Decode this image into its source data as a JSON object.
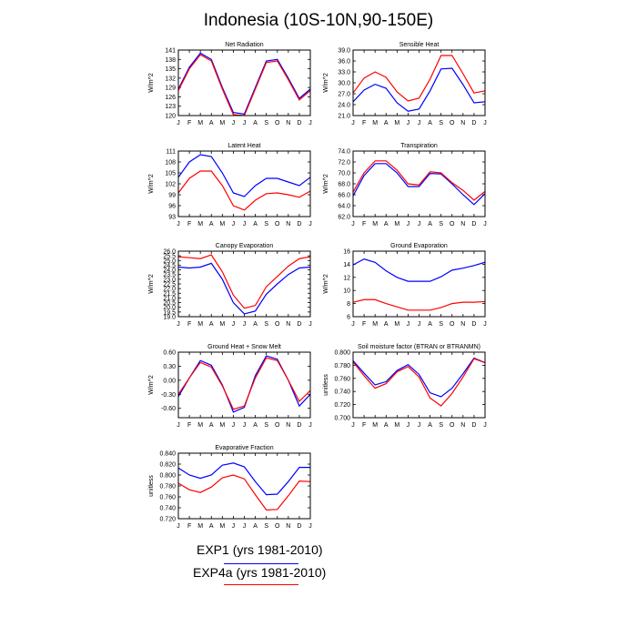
{
  "figure": {
    "title": "Indonesia (10S-10N,90-150E)",
    "months": [
      "J",
      "F",
      "M",
      "A",
      "M",
      "J",
      "J",
      "A",
      "S",
      "O",
      "N",
      "D",
      "J"
    ]
  },
  "legend": [
    {
      "label": "EXP1 (yrs 1981-2010)",
      "color": "#0000ff"
    },
    {
      "label": "EXP4a (yrs 1981-2010)",
      "color": "#ff0000"
    }
  ],
  "chart_data": [
    {
      "type": "line",
      "title": "Net Radiation",
      "ylabel": "W/m^2",
      "ylim": [
        120,
        141
      ],
      "yticks": [
        120,
        123,
        126,
        129,
        132,
        135,
        138,
        141
      ],
      "ytick_labels": [
        "120",
        "123",
        "126",
        "129",
        "132",
        "135",
        "138",
        "141"
      ],
      "series": [
        {
          "name": "EXP1 (yrs 1981-2010)",
          "color": "#0000ff",
          "values": [
            128.5,
            135.5,
            140.0,
            138.0,
            129.0,
            121.0,
            120.5,
            129.0,
            137.5,
            138.0,
            132.0,
            125.5,
            128.5
          ]
        },
        {
          "name": "EXP4a (yrs 1981-2010)",
          "color": "#ff0000",
          "values": [
            128.0,
            135.0,
            139.5,
            137.5,
            128.5,
            120.3,
            120.0,
            128.5,
            137.0,
            137.5,
            131.5,
            125.0,
            128.0
          ]
        }
      ]
    },
    {
      "type": "line",
      "title": "Sensible Heat",
      "ylabel": "W/m^2",
      "ylim": [
        21,
        39
      ],
      "yticks": [
        21,
        24,
        27,
        30,
        33,
        36,
        39
      ],
      "ytick_labels": [
        "21.0",
        "24.0",
        "27.0",
        "30.0",
        "33.0",
        "36.0",
        "39.0"
      ],
      "series": [
        {
          "name": "EXP1 (yrs 1981-2010)",
          "color": "#0000ff",
          "values": [
            24.8,
            28.0,
            29.6,
            28.5,
            24.5,
            22.2,
            22.8,
            27.8,
            33.8,
            34.0,
            29.5,
            24.5,
            24.8
          ]
        },
        {
          "name": "EXP4a (yrs 1981-2010)",
          "color": "#ff0000",
          "values": [
            27.2,
            31.3,
            33.0,
            31.5,
            27.5,
            25.0,
            25.8,
            31.0,
            37.5,
            37.5,
            32.5,
            27.2,
            27.8
          ]
        }
      ]
    },
    {
      "type": "line",
      "title": "Latent Heat",
      "ylabel": "W/m^2",
      "ylim": [
        93,
        111
      ],
      "yticks": [
        93,
        96,
        99,
        102,
        105,
        108,
        111
      ],
      "ytick_labels": [
        "93",
        "96",
        "99",
        "102",
        "105",
        "108",
        "111"
      ],
      "series": [
        {
          "name": "EXP1 (yrs 1981-2010)",
          "color": "#0000ff",
          "values": [
            103.8,
            108.0,
            110.0,
            109.5,
            105.0,
            99.5,
            98.5,
            101.5,
            103.5,
            103.5,
            102.5,
            101.5,
            103.8
          ]
        },
        {
          "name": "EXP4a (yrs 1981-2010)",
          "color": "#ff0000",
          "values": [
            99.5,
            103.5,
            105.5,
            105.5,
            101.5,
            96.0,
            94.8,
            97.5,
            99.3,
            99.5,
            99.0,
            98.3,
            100.0
          ]
        }
      ]
    },
    {
      "type": "line",
      "title": "Transpiration",
      "ylabel": "W/m^2",
      "ylim": [
        62,
        74
      ],
      "yticks": [
        62,
        64,
        66,
        68,
        70,
        72,
        74
      ],
      "ytick_labels": [
        "62.0",
        "64.0",
        "66.0",
        "68.0",
        "70.0",
        "72.0",
        "74.0"
      ],
      "series": [
        {
          "name": "EXP1 (yrs 1981-2010)",
          "color": "#0000ff",
          "values": [
            65.8,
            69.5,
            71.7,
            71.7,
            70.0,
            67.5,
            67.5,
            69.9,
            69.8,
            68.0,
            66.0,
            64.2,
            66.2
          ]
        },
        {
          "name": "EXP4a (yrs 1981-2010)",
          "color": "#ff0000",
          "values": [
            66.5,
            70.0,
            72.2,
            72.2,
            70.5,
            68.0,
            67.8,
            70.2,
            70.0,
            68.2,
            66.8,
            65.0,
            66.6
          ]
        }
      ]
    },
    {
      "type": "line",
      "title": "Canopy Evaporation",
      "ylabel": "W/m^2",
      "ylim": [
        19,
        26
      ],
      "yticks": [
        19,
        19.5,
        20,
        20.5,
        21,
        21.5,
        22,
        22.5,
        23,
        23.5,
        24,
        24.5,
        25,
        25.5,
        26
      ],
      "ytick_labels": [
        "19.0",
        "19.5",
        "20.0",
        "20.5",
        "21.0",
        "21.5",
        "22.0",
        "22.5",
        "23.0",
        "23.5",
        "24.0",
        "24.5",
        "25.0",
        "25.5",
        "26.0"
      ],
      "series": [
        {
          "name": "EXP1 (yrs 1981-2010)",
          "color": "#0000ff",
          "values": [
            24.3,
            24.2,
            24.3,
            24.7,
            23.0,
            20.5,
            19.3,
            19.6,
            21.4,
            22.5,
            23.5,
            24.2,
            24.3
          ]
        },
        {
          "name": "EXP4a (yrs 1981-2010)",
          "color": "#ff0000",
          "values": [
            25.4,
            25.3,
            25.2,
            25.6,
            23.8,
            21.3,
            19.9,
            20.2,
            22.2,
            23.3,
            24.4,
            25.2,
            25.4
          ]
        }
      ]
    },
    {
      "type": "line",
      "title": "Ground Evaporation",
      "ylabel": "W/m^2",
      "ylim": [
        6,
        16
      ],
      "yticks": [
        6,
        8,
        10,
        12,
        14,
        16
      ],
      "ytick_labels": [
        "6",
        "8",
        "10",
        "12",
        "14",
        "16"
      ],
      "series": [
        {
          "name": "EXP1 (yrs 1981-2010)",
          "color": "#0000ff",
          "values": [
            13.9,
            14.8,
            14.3,
            13.0,
            12.0,
            11.4,
            11.4,
            11.4,
            12.1,
            13.1,
            13.4,
            13.8,
            14.3
          ]
        },
        {
          "name": "EXP4a (yrs 1981-2010)",
          "color": "#ff0000",
          "values": [
            8.2,
            8.6,
            8.6,
            8.0,
            7.5,
            7.0,
            7.0,
            7.0,
            7.4,
            8.0,
            8.2,
            8.2,
            8.3
          ]
        }
      ]
    },
    {
      "type": "line",
      "title": "Ground Heat + Snow Melt",
      "ylabel": "W/m^2",
      "ylim": [
        -0.8,
        0.6
      ],
      "yticks": [
        -0.6,
        -0.3,
        0,
        0.3,
        0.6
      ],
      "ytick_labels": [
        "-0.60",
        "-0.30",
        "0.00",
        "0.30",
        "0.60"
      ],
      "series": [
        {
          "name": "EXP1 (yrs 1981-2010)",
          "color": "#0000ff",
          "values": [
            -0.35,
            0.05,
            0.42,
            0.32,
            -0.1,
            -0.68,
            -0.58,
            0.1,
            0.52,
            0.45,
            0.0,
            -0.55,
            -0.3
          ]
        },
        {
          "name": "EXP4a (yrs 1981-2010)",
          "color": "#ff0000",
          "values": [
            -0.3,
            0.05,
            0.38,
            0.28,
            -0.12,
            -0.62,
            -0.55,
            0.05,
            0.48,
            0.42,
            0.0,
            -0.45,
            -0.22
          ]
        }
      ]
    },
    {
      "type": "line",
      "title": "Soil moisture factor (BTRAN or BTRANMN)",
      "ylabel": "unitless",
      "ylim": [
        0.7,
        0.8
      ],
      "yticks": [
        0.7,
        0.72,
        0.74,
        0.76,
        0.78,
        0.8
      ],
      "ytick_labels": [
        "0.700",
        "0.720",
        "0.740",
        "0.760",
        "0.780",
        "0.800"
      ],
      "series": [
        {
          "name": "EXP1 (yrs 1981-2010)",
          "color": "#0000ff",
          "values": [
            0.787,
            0.768,
            0.75,
            0.755,
            0.772,
            0.781,
            0.766,
            0.738,
            0.732,
            0.745,
            0.767,
            0.791,
            0.784
          ]
        },
        {
          "name": "EXP4a (yrs 1981-2010)",
          "color": "#ff0000",
          "values": [
            0.785,
            0.764,
            0.745,
            0.752,
            0.77,
            0.778,
            0.762,
            0.73,
            0.718,
            0.737,
            0.762,
            0.79,
            0.784
          ]
        }
      ]
    },
    {
      "type": "line",
      "title": "Evaporative Fraction",
      "ylabel": "unitless",
      "ylim": [
        0.72,
        0.84
      ],
      "yticks": [
        0.72,
        0.74,
        0.76,
        0.78,
        0.8,
        0.82,
        0.84
      ],
      "ytick_labels": [
        "0.720",
        "0.740",
        "0.760",
        "0.780",
        "0.800",
        "0.820",
        "0.840"
      ],
      "series": [
        {
          "name": "EXP1 (yrs 1981-2010)",
          "color": "#0000ff",
          "values": [
            0.813,
            0.8,
            0.794,
            0.8,
            0.818,
            0.822,
            0.815,
            0.788,
            0.764,
            0.765,
            0.788,
            0.814,
            0.814
          ]
        },
        {
          "name": "EXP4a (yrs 1981-2010)",
          "color": "#ff0000",
          "values": [
            0.785,
            0.773,
            0.768,
            0.778,
            0.795,
            0.8,
            0.793,
            0.764,
            0.736,
            0.737,
            0.762,
            0.789,
            0.788
          ]
        }
      ]
    }
  ]
}
